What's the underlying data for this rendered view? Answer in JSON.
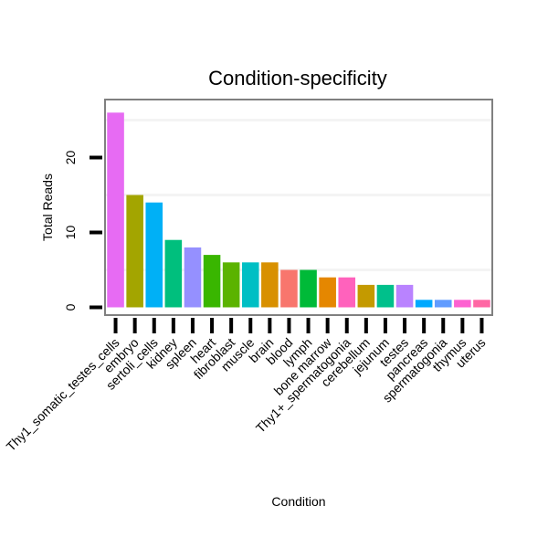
{
  "chart_data": {
    "type": "bar",
    "title": "Condition-specificity",
    "xlabel": "Condition",
    "ylabel": "Total Reads",
    "ylim": [
      0,
      26.5
    ],
    "yticks": [
      0,
      10,
      20
    ],
    "grid": true,
    "legend": "none",
    "categories": [
      "Thy1_somatic_testes_cells",
      "embryo",
      "sertoli_cells",
      "kidney",
      "spleen",
      "heart",
      "fibroblast",
      "muscle",
      "brain",
      "blood",
      "lymph",
      "bone marrow",
      "Thy1+_spermatogonia",
      "cerebellum",
      "jejunum",
      "testes",
      "pancreas",
      "spermatogonia",
      "thymus",
      "uterus"
    ],
    "values": [
      26,
      15,
      14,
      9,
      8,
      7,
      6,
      6,
      6,
      5,
      5,
      4,
      4,
      3,
      3,
      3,
      1,
      1,
      1,
      1
    ],
    "colors": [
      "#e76bf3",
      "#a3a500",
      "#00b0f6",
      "#00bf7d",
      "#9590ff",
      "#39b600",
      "#5bb300",
      "#00bfc4",
      "#d89000",
      "#f8766d",
      "#00ba38",
      "#e58700",
      "#ff62bc",
      "#c49a00",
      "#00c08b",
      "#b983ff",
      "#00a9ff",
      "#619cff",
      "#fd61d1",
      "#ff67a4"
    ]
  }
}
